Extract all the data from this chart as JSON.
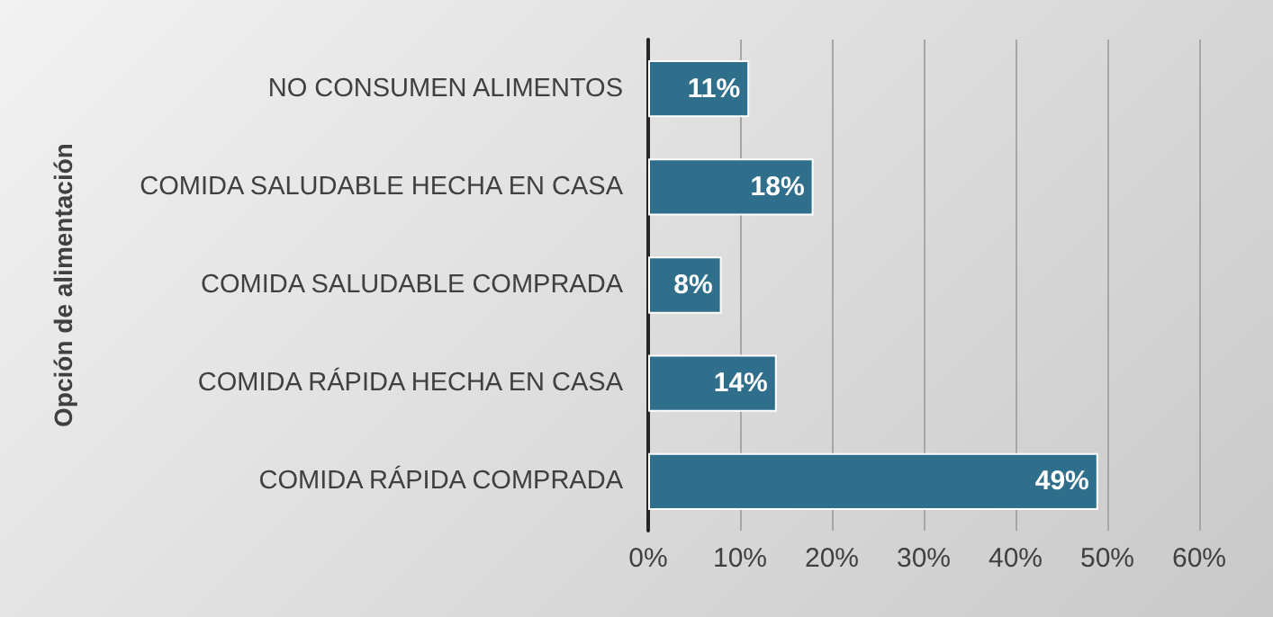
{
  "chart_data": {
    "type": "bar",
    "orientation": "horizontal",
    "ylabel": "Opción de alimentación",
    "categories": [
      "NO CONSUMEN ALIMENTOS",
      "COMIDA SALUDABLE HECHA EN CASA",
      "COMIDA SALUDABLE COMPRADA",
      "COMIDA RÁPIDA HECHA EN CASA",
      "COMIDA RÁPIDA COMPRADA"
    ],
    "values": [
      11,
      18,
      8,
      14,
      49
    ],
    "color": "#2f6f8c",
    "value_labels": [
      "11%",
      "18%",
      "8%",
      "14%",
      "49%"
    ],
    "xlim": [
      0,
      60
    ],
    "xticks": [
      {
        "value": 0,
        "label": "0%"
      },
      {
        "value": 10,
        "label": "10%"
      },
      {
        "value": 20,
        "label": "20%"
      },
      {
        "value": 30,
        "label": "30%"
      },
      {
        "value": 40,
        "label": "40%"
      },
      {
        "value": 50,
        "label": "50%"
      },
      {
        "value": 60,
        "label": "60%"
      }
    ],
    "grid": "x"
  }
}
